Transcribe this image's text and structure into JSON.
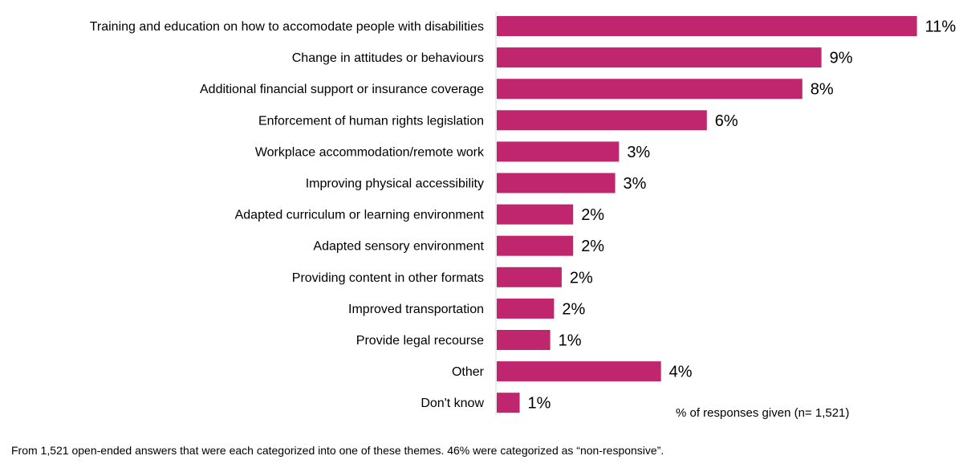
{
  "chart_data": {
    "type": "bar",
    "orientation": "horizontal",
    "categories": [
      "Training and education on how to accomodate people with disabilities",
      "Change in attitudes or behaviours",
      "Additional financial support or insurance coverage",
      "Enforcement of human rights legislation",
      "Workplace accommodation/remote work",
      "Improving physical accessibility",
      "Adapted curriculum or learning environment",
      "Adapted sensory environment",
      "Providing content in other formats",
      "Improved transportation",
      "Provide legal recourse",
      "Other",
      "Don't know"
    ],
    "values": [
      11,
      9,
      8,
      6,
      3,
      3,
      2,
      2,
      2,
      2,
      1,
      4,
      1
    ],
    "value_labels": [
      "11%",
      "9%",
      "8%",
      "6%",
      "3%",
      "3%",
      "2%",
      "2%",
      "2%",
      "2%",
      "1%",
      "4%",
      "1%"
    ],
    "bar_lengths_percent": [
      11.0,
      8.5,
      8.0,
      5.5,
      3.2,
      3.1,
      2.0,
      2.0,
      1.7,
      1.5,
      1.4,
      4.3,
      0.6
    ],
    "axis_label": "% of responses given (n= 1,521)",
    "bar_color": "#c0266e",
    "grid": false,
    "legend": "none"
  },
  "footnote": "From 1,521 open-ended answers that were each categorized into one of these themes. 46% were categorized as “non-responsive”."
}
